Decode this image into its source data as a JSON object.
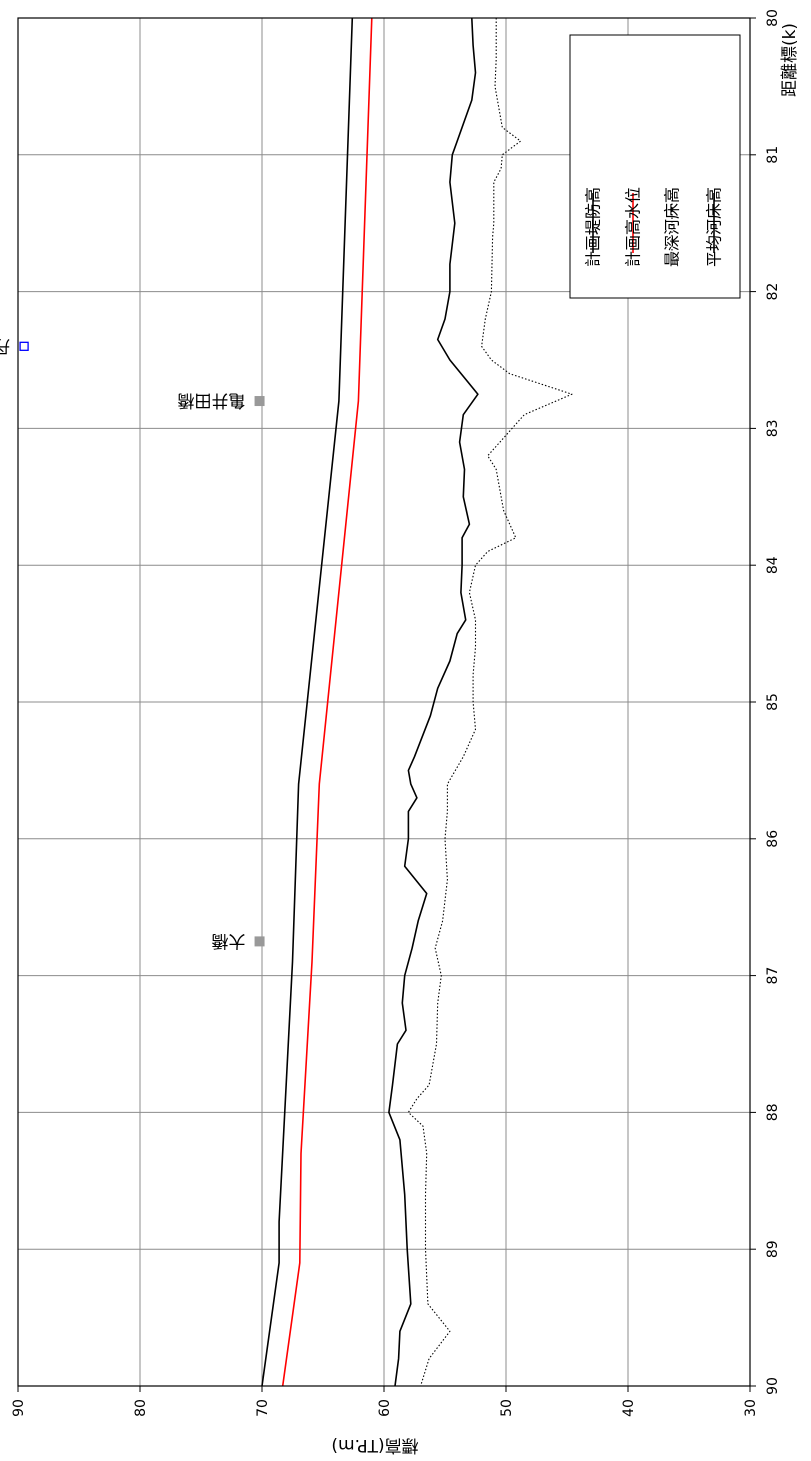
{
  "chart_data": {
    "type": "line",
    "orientation": "rotated-90-clockwise",
    "xlabel": "距離標(k)",
    "ylabel": "標高(TP.m)",
    "xlim": [
      80,
      90
    ],
    "ylim": [
      30,
      90
    ],
    "x_ticks": [
      "80",
      "81",
      "82",
      "83",
      "84",
      "85",
      "86",
      "87",
      "88",
      "89",
      "90"
    ],
    "y_ticks": [
      "30",
      "40",
      "50",
      "60",
      "70",
      "80",
      "90"
    ],
    "grid": true,
    "legend_position": "top-right",
    "series": [
      {
        "name": "計画堤防高",
        "color": "#000000",
        "style": "solid",
        "width": 1.6,
        "points": [
          [
            80.0,
            62.6
          ],
          [
            82.8,
            63.7
          ],
          [
            85.6,
            67.0
          ],
          [
            86.9,
            67.5
          ],
          [
            88.8,
            68.6
          ],
          [
            89.1,
            68.6
          ],
          [
            90.0,
            70.0
          ]
        ]
      },
      {
        "name": "計画高水位",
        "color": "#ff0000",
        "style": "solid",
        "width": 1.6,
        "points": [
          [
            80.0,
            61.0
          ],
          [
            82.8,
            62.1
          ],
          [
            85.6,
            65.3
          ],
          [
            86.9,
            65.9
          ],
          [
            88.3,
            66.8
          ],
          [
            89.1,
            66.9
          ],
          [
            90.0,
            68.3
          ]
        ]
      },
      {
        "name": "最深河床高",
        "color": "#000000",
        "style": "dotted",
        "width": 1.1,
        "points": [
          [
            80.0,
            50.8
          ],
          [
            80.3,
            50.8
          ],
          [
            80.5,
            50.9
          ],
          [
            80.8,
            50.3
          ],
          [
            80.9,
            48.8
          ],
          [
            81.0,
            50.3
          ],
          [
            81.1,
            50.4
          ],
          [
            81.2,
            51.0
          ],
          [
            81.4,
            51.0
          ],
          [
            81.5,
            51.0
          ],
          [
            81.6,
            51.1
          ],
          [
            82.0,
            51.2
          ],
          [
            82.2,
            51.7
          ],
          [
            82.4,
            52.0
          ],
          [
            82.5,
            51.2
          ],
          [
            82.6,
            49.7
          ],
          [
            82.75,
            44.6
          ],
          [
            82.9,
            48.5
          ],
          [
            83.0,
            49.5
          ],
          [
            83.2,
            51.5
          ],
          [
            83.3,
            50.8
          ],
          [
            83.6,
            50.2
          ],
          [
            83.8,
            49.2
          ],
          [
            83.9,
            51.5
          ],
          [
            84.0,
            52.5
          ],
          [
            84.2,
            53.0
          ],
          [
            84.4,
            52.5
          ],
          [
            84.6,
            52.5
          ],
          [
            84.8,
            52.7
          ],
          [
            85.0,
            52.7
          ],
          [
            85.2,
            52.5
          ],
          [
            85.4,
            53.5
          ],
          [
            85.6,
            54.8
          ],
          [
            85.8,
            54.8
          ],
          [
            86.0,
            55.0
          ],
          [
            86.3,
            54.8
          ],
          [
            86.6,
            55.2
          ],
          [
            86.8,
            55.8
          ],
          [
            87.0,
            55.3
          ],
          [
            87.2,
            55.6
          ],
          [
            87.5,
            55.7
          ],
          [
            87.8,
            56.3
          ],
          [
            87.9,
            57.3
          ],
          [
            88.0,
            58.0
          ],
          [
            88.1,
            56.8
          ],
          [
            88.3,
            56.5
          ],
          [
            88.6,
            56.6
          ],
          [
            89.0,
            56.6
          ],
          [
            89.4,
            56.4
          ],
          [
            89.6,
            54.6
          ],
          [
            89.8,
            56.3
          ],
          [
            90.0,
            57.0
          ]
        ]
      },
      {
        "name": "平均河床高",
        "color": "#000000",
        "style": "solid",
        "width": 1.6,
        "points": [
          [
            80.0,
            52.8
          ],
          [
            80.2,
            52.7
          ],
          [
            80.4,
            52.5
          ],
          [
            80.6,
            52.8
          ],
          [
            80.9,
            54.0
          ],
          [
            81.0,
            54.4
          ],
          [
            81.2,
            54.6
          ],
          [
            81.5,
            54.2
          ],
          [
            81.8,
            54.6
          ],
          [
            82.0,
            54.6
          ],
          [
            82.2,
            55.0
          ],
          [
            82.35,
            55.6
          ],
          [
            82.5,
            54.6
          ],
          [
            82.75,
            52.3
          ],
          [
            82.9,
            53.5
          ],
          [
            83.1,
            53.8
          ],
          [
            83.3,
            53.4
          ],
          [
            83.5,
            53.5
          ],
          [
            83.7,
            53.0
          ],
          [
            83.8,
            53.6
          ],
          [
            84.0,
            53.6
          ],
          [
            84.2,
            53.7
          ],
          [
            84.4,
            53.3
          ],
          [
            84.5,
            54.0
          ],
          [
            84.7,
            54.6
          ],
          [
            84.9,
            55.6
          ],
          [
            85.1,
            56.2
          ],
          [
            85.4,
            57.5
          ],
          [
            85.5,
            58.0
          ],
          [
            85.6,
            57.8
          ],
          [
            85.7,
            57.3
          ],
          [
            85.8,
            58.0
          ],
          [
            86.0,
            58.0
          ],
          [
            86.2,
            58.3
          ],
          [
            86.4,
            56.5
          ],
          [
            86.6,
            57.2
          ],
          [
            86.8,
            57.7
          ],
          [
            87.0,
            58.3
          ],
          [
            87.2,
            58.5
          ],
          [
            87.4,
            58.2
          ],
          [
            87.5,
            58.9
          ],
          [
            87.8,
            59.3
          ],
          [
            88.0,
            59.6
          ],
          [
            88.2,
            58.7
          ],
          [
            88.6,
            58.3
          ],
          [
            89.0,
            58.1
          ],
          [
            89.4,
            57.8
          ],
          [
            89.6,
            58.7
          ],
          [
            89.8,
            58.8
          ],
          [
            90.0,
            59.1
          ]
        ]
      }
    ],
    "annotations": [
      {
        "label": "丹生川",
        "x": 82.4,
        "y": 89.5,
        "marker": "open-square",
        "color": "#0000ff"
      },
      {
        "label": "亀井田橋",
        "x": 82.8,
        "y": 70.2,
        "marker": "filled-square",
        "color": "#999999"
      },
      {
        "label": "大橋",
        "x": 86.75,
        "y": 70.2,
        "marker": "filled-square",
        "color": "#999999"
      }
    ]
  }
}
